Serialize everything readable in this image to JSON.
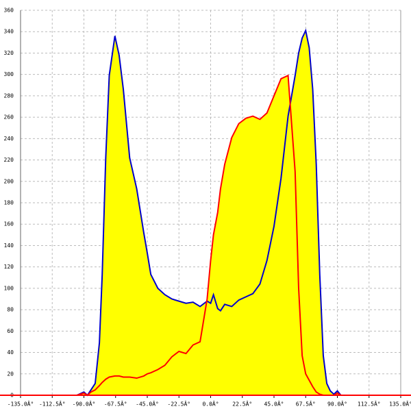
{
  "chart_data": {
    "type": "area",
    "x": [
      -95,
      -90,
      -87.5,
      -85,
      -82,
      -79,
      -77,
      -74.5,
      -72,
      -68,
      -65,
      -62,
      -57.5,
      -52.5,
      -47.5,
      -45,
      -42.5,
      -37.5,
      -32.5,
      -27.5,
      -22.5,
      -17.5,
      -12.5,
      -7.5,
      -2.5,
      0,
      2,
      5,
      7,
      10,
      15,
      20,
      25,
      30,
      35,
      40,
      45,
      50,
      55,
      60,
      62.5,
      65,
      67.5,
      70,
      72.5,
      75,
      77.5,
      80,
      82.5,
      85,
      87.5,
      90,
      92.5,
      95
    ],
    "series": [
      {
        "color": "#0000cc",
        "values": [
          0,
          3,
          0,
          5,
          11,
          49,
          113,
          222,
          299,
          336,
          318,
          286,
          222,
          193,
          152,
          133,
          113,
          100,
          94,
          90,
          88,
          86,
          87,
          83,
          88,
          86,
          94,
          81,
          79,
          85,
          83,
          89,
          92,
          95,
          104,
          126,
          158,
          203,
          261,
          299,
          320,
          334,
          341,
          325,
          286,
          216,
          113,
          37,
          11,
          4,
          1,
          4,
          0,
          0
        ]
      },
      {
        "color": "#ff0000",
        "values": [
          0,
          2,
          0,
          3,
          5,
          9,
          12,
          15,
          17,
          18,
          18,
          17,
          17,
          16,
          18,
          20,
          21,
          24,
          28,
          36,
          41,
          39,
          47,
          50,
          90,
          126,
          150,
          171,
          193,
          216,
          241,
          254,
          259,
          261,
          258,
          264,
          280,
          296,
          299,
          209,
          100,
          37,
          20,
          14,
          8,
          3,
          1,
          0,
          0,
          0,
          0,
          2,
          0,
          0
        ]
      }
    ],
    "area_color": "#ffff00",
    "xlim": [
      -135,
      135
    ],
    "xticks": [
      {
        "value": -135,
        "label": "-135.0Â°"
      },
      {
        "value": -112.5,
        "label": "-112.5Â°"
      },
      {
        "value": -90,
        "label": "-90.0Â°"
      },
      {
        "value": -67.5,
        "label": "-67.5Â°"
      },
      {
        "value": -45,
        "label": "-45.0Â°"
      },
      {
        "value": -22.5,
        "label": "-22.5Â°"
      },
      {
        "value": 0,
        "label": "0.0Â°"
      },
      {
        "value": 22.5,
        "label": "22.5Â°"
      },
      {
        "value": 45,
        "label": "45.0Â°"
      },
      {
        "value": 67.5,
        "label": "67.5Â°"
      },
      {
        "value": 90,
        "label": "90.0Â°"
      },
      {
        "value": 112.5,
        "label": "112.5Â°"
      },
      {
        "value": 135,
        "label": "135.0Â°"
      }
    ],
    "ylim": [
      0,
      360
    ],
    "yticks": [
      0,
      20,
      40,
      60,
      80,
      100,
      120,
      140,
      160,
      180,
      200,
      220,
      240,
      260,
      280,
      300,
      320,
      340,
      360
    ],
    "grid": true
  }
}
